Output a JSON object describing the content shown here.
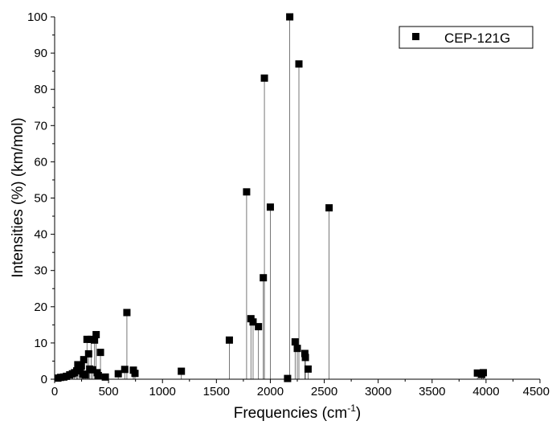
{
  "chart_data": {
    "type": "scatter",
    "title": "",
    "xlabel": "Frequencies (cm",
    "xlabel_sup": "-1",
    "xlabel_suffix": ")",
    "ylabel": "Intensities (%) (km/mol)",
    "xlim": [
      0,
      4500
    ],
    "ylim": [
      0,
      100
    ],
    "xticks": [
      0,
      500,
      1000,
      1500,
      2000,
      2500,
      3000,
      3500,
      4000,
      4500
    ],
    "yticks": [
      0,
      10,
      20,
      30,
      40,
      50,
      60,
      70,
      80,
      90,
      100
    ],
    "grid": false,
    "legend_position": "top-right",
    "drop_lines": true,
    "series": [
      {
        "name": "CEP-121G",
        "marker": "square",
        "color": "#000000",
        "points": [
          [
            30,
            0.3
          ],
          [
            55,
            0.5
          ],
          [
            85,
            0.6
          ],
          [
            110,
            0.8
          ],
          [
            140,
            1.2
          ],
          [
            165,
            1.5
          ],
          [
            185,
            1.8
          ],
          [
            205,
            2.3
          ],
          [
            215,
            4.0
          ],
          [
            235,
            2.8
          ],
          [
            248,
            3.6
          ],
          [
            260,
            1.4
          ],
          [
            270,
            5.4
          ],
          [
            285,
            1.2
          ],
          [
            300,
            11.0
          ],
          [
            315,
            7.0
          ],
          [
            325,
            2.8
          ],
          [
            338,
            11.0
          ],
          [
            352,
            2.6
          ],
          [
            370,
            10.8
          ],
          [
            385,
            12.3
          ],
          [
            395,
            1.8
          ],
          [
            405,
            1.0
          ],
          [
            425,
            7.4
          ],
          [
            470,
            0.6
          ],
          [
            590,
            1.5
          ],
          [
            650,
            2.7
          ],
          [
            670,
            18.4
          ],
          [
            730,
            2.5
          ],
          [
            745,
            1.6
          ],
          [
            1175,
            2.2
          ],
          [
            1620,
            10.8
          ],
          [
            1780,
            51.7
          ],
          [
            1820,
            16.7
          ],
          [
            1840,
            15.8
          ],
          [
            1890,
            14.5
          ],
          [
            1935,
            28.0
          ],
          [
            1945,
            83.1
          ],
          [
            2000,
            47.5
          ],
          [
            2160,
            0.2
          ],
          [
            2180,
            100.0
          ],
          [
            2230,
            10.3
          ],
          [
            2250,
            8.5
          ],
          [
            2265,
            87.0
          ],
          [
            2320,
            7.1
          ],
          [
            2325,
            6.0
          ],
          [
            2350,
            2.8
          ],
          [
            2545,
            47.3
          ],
          [
            3920,
            1.7
          ],
          [
            3960,
            1.3
          ],
          [
            3975,
            1.8
          ]
        ]
      }
    ]
  }
}
